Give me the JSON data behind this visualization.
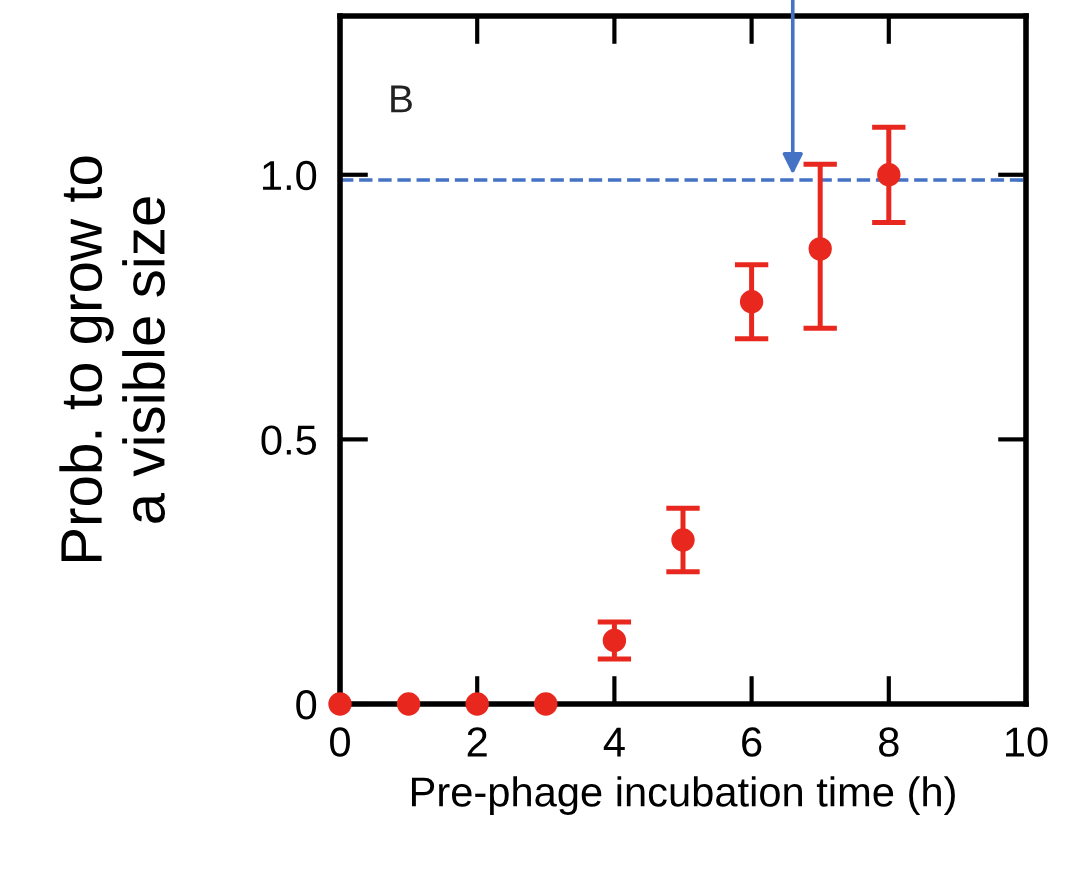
{
  "chart_data": {
    "type": "scatter",
    "ylabel": "Prob. to grow to\na visible size",
    "xlabel": "Pre-phage incubation time (h)",
    "annotations": [
      "B"
    ],
    "x": [
      0,
      1,
      2,
      3,
      4,
      5,
      6,
      7,
      8
    ],
    "series": [
      {
        "color": "#e8281e",
        "values": [
          0,
          0,
          0,
          0,
          0.12,
          0.31,
          0.76,
          0.86,
          1.0
        ],
        "errors": [
          null,
          null,
          null,
          null,
          0.035,
          0.06,
          0.07,
          [
            0.71,
            1.02
          ],
          [
            0.91,
            1.09
          ]
        ]
      }
    ],
    "xlim": [
      0,
      10
    ],
    "xticks": [
      0,
      2,
      4,
      6,
      8,
      10
    ],
    "ylim": [
      0,
      1.3
    ],
    "yticks": [
      0,
      0.5,
      {
        "value": 1,
        "label": "1.0"
      }
    ],
    "ref_lines": [
      {
        "axis": "y",
        "value": 0.99,
        "color": "#4472c4",
        "line_style": "dashed"
      }
    ],
    "marker": "circle",
    "grid": false,
    "legend": false
  }
}
